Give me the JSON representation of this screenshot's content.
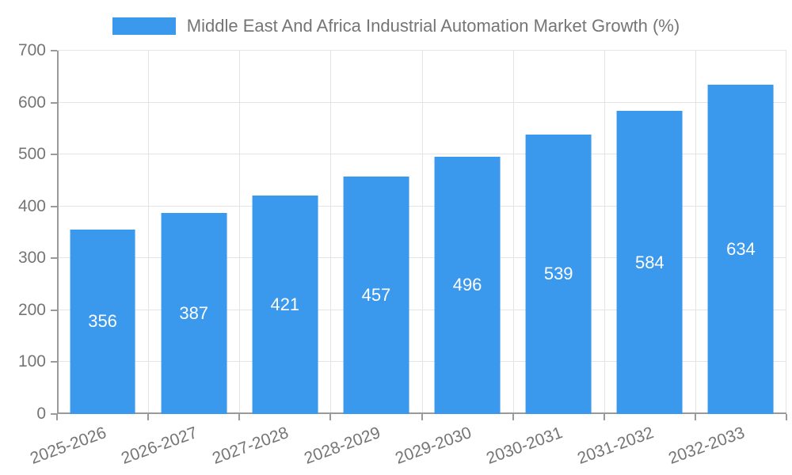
{
  "chart_data": {
    "type": "bar",
    "title": "Middle East And Africa Industrial Automation Market Growth (%)",
    "categories": [
      "2025-2026",
      "2026-2027",
      "2027-2028",
      "2028-2029",
      "2029-2030",
      "2030-2031",
      "2031-2032",
      "2032-2033"
    ],
    "values": [
      356,
      387,
      421,
      457,
      496,
      539,
      584,
      634
    ],
    "xlabel": "",
    "ylabel": "",
    "ylim": [
      0,
      700
    ],
    "y_ticks": [
      0,
      100,
      200,
      300,
      400,
      500,
      600,
      700
    ],
    "grid": true,
    "legend_position": "top",
    "value_label_position": "inside-center",
    "x_label_rotation_deg": -20
  },
  "colors": {
    "bar": "#3b99ed",
    "text": "#757575",
    "grid": "#e4e4e4",
    "axis": "#9a9a9a",
    "value_label": "#ffffff",
    "background": "#ffffff"
  }
}
